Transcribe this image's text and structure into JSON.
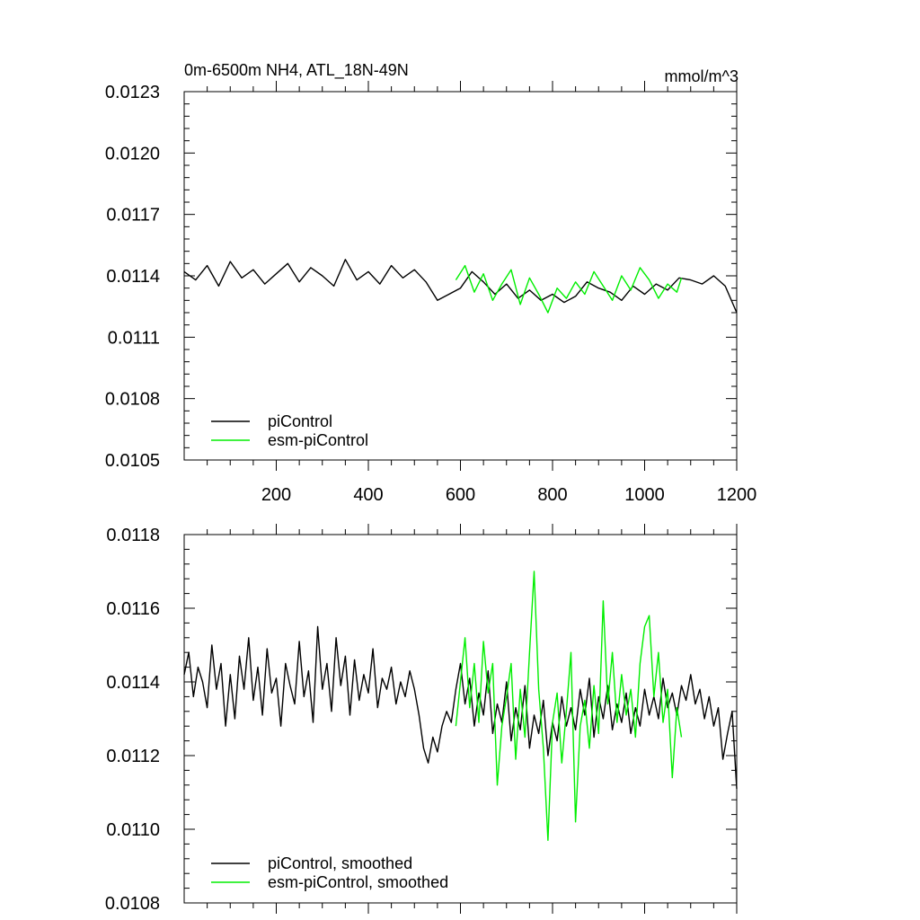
{
  "chart_data": [
    {
      "type": "line",
      "title": "0m-6500m NH4, ATL_18N-49N",
      "units": "mmol/m^3",
      "xlim": [
        0,
        1200
      ],
      "ylim": [
        0.0105,
        0.0123
      ],
      "xticks": [
        200,
        400,
        600,
        800,
        1000,
        1200
      ],
      "xtick_labels": [
        "200",
        "400",
        "600",
        "800",
        "1000",
        "1200"
      ],
      "yticks": [
        0.0105,
        0.0108,
        0.0111,
        0.0114,
        0.0117,
        0.012,
        0.0123
      ],
      "ytick_labels": [
        "0.0105",
        "0.0108",
        "0.0111",
        "0.0114",
        "0.0117",
        "0.0120",
        "0.0123"
      ],
      "legend_position": "lower-left",
      "series": [
        {
          "name": "piControl",
          "color": "#000000",
          "x": [
            0,
            25,
            50,
            75,
            100,
            125,
            150,
            175,
            200,
            225,
            250,
            275,
            300,
            325,
            350,
            375,
            400,
            425,
            450,
            475,
            500,
            525,
            550,
            575,
            600,
            625,
            650,
            675,
            700,
            725,
            750,
            775,
            800,
            825,
            850,
            875,
            900,
            925,
            950,
            975,
            1000,
            1025,
            1050,
            1075,
            1100,
            1125,
            1150,
            1175,
            1200
          ],
          "values": [
            0.01142,
            0.01138,
            0.01145,
            0.01135,
            0.01147,
            0.01139,
            0.01143,
            0.01136,
            0.01141,
            0.01146,
            0.01137,
            0.01144,
            0.0114,
            0.01135,
            0.01148,
            0.01138,
            0.01142,
            0.01136,
            0.01145,
            0.01139,
            0.01143,
            0.01137,
            0.01128,
            0.01131,
            0.01134,
            0.01142,
            0.01137,
            0.01131,
            0.01136,
            0.01129,
            0.01133,
            0.01128,
            0.01131,
            0.01127,
            0.0113,
            0.01137,
            0.01134,
            0.01132,
            0.01128,
            0.01135,
            0.01131,
            0.01136,
            0.01133,
            0.01139,
            0.01138,
            0.01136,
            0.0114,
            0.01135,
            0.01122
          ]
        },
        {
          "name": "esm-piControl",
          "color": "#00ee00",
          "x": [
            590,
            610,
            630,
            650,
            670,
            690,
            710,
            730,
            750,
            770,
            790,
            810,
            830,
            850,
            870,
            890,
            910,
            930,
            950,
            970,
            990,
            1010,
            1030,
            1050,
            1070,
            1080
          ],
          "values": [
            0.01138,
            0.01145,
            0.01132,
            0.01141,
            0.01128,
            0.01136,
            0.01143,
            0.01126,
            0.01139,
            0.01131,
            0.01122,
            0.01134,
            0.01129,
            0.01137,
            0.01131,
            0.01142,
            0.01135,
            0.01128,
            0.0114,
            0.01133,
            0.01144,
            0.01138,
            0.01129,
            0.01136,
            0.01132,
            0.01139
          ]
        }
      ]
    },
    {
      "type": "line",
      "xlim": [
        0,
        1200
      ],
      "ylim": [
        0.0108,
        0.0118
      ],
      "yticks": [
        0.0108,
        0.011,
        0.0112,
        0.0114,
        0.0116,
        0.0118
      ],
      "ytick_labels": [
        "0.0108",
        "0.0110",
        "0.0112",
        "0.0114",
        "0.0116",
        "0.0118"
      ],
      "legend_position": "lower-left",
      "series": [
        {
          "name": "piControl, smoothed",
          "color": "#000000",
          "x": [
            0,
            10,
            20,
            30,
            40,
            50,
            60,
            70,
            80,
            90,
            100,
            110,
            120,
            130,
            140,
            150,
            160,
            170,
            180,
            190,
            200,
            210,
            220,
            230,
            240,
            250,
            260,
            270,
            280,
            290,
            300,
            310,
            320,
            330,
            340,
            350,
            360,
            370,
            380,
            390,
            400,
            410,
            420,
            430,
            440,
            450,
            460,
            470,
            480,
            490,
            500,
            510,
            520,
            530,
            540,
            550,
            560,
            570,
            580,
            590,
            600,
            610,
            620,
            630,
            640,
            650,
            660,
            670,
            680,
            690,
            700,
            710,
            720,
            730,
            740,
            750,
            760,
            770,
            780,
            790,
            800,
            810,
            820,
            830,
            840,
            850,
            860,
            870,
            880,
            890,
            900,
            910,
            920,
            930,
            940,
            950,
            960,
            970,
            980,
            990,
            1000,
            1010,
            1020,
            1030,
            1040,
            1050,
            1060,
            1070,
            1080,
            1090,
            1100,
            1110,
            1120,
            1130,
            1140,
            1150,
            1160,
            1170,
            1180,
            1190,
            1200
          ],
          "values": [
            0.01142,
            0.01148,
            0.01136,
            0.01144,
            0.0114,
            0.01133,
            0.0115,
            0.01138,
            0.01145,
            0.01128,
            0.01142,
            0.0113,
            0.01147,
            0.01138,
            0.01152,
            0.01135,
            0.01144,
            0.01131,
            0.01149,
            0.01137,
            0.01141,
            0.01128,
            0.01145,
            0.01139,
            0.01134,
            0.01151,
            0.01136,
            0.01143,
            0.01129,
            0.01155,
            0.01138,
            0.01145,
            0.01132,
            0.01152,
            0.01139,
            0.01147,
            0.01131,
            0.01146,
            0.01135,
            0.01142,
            0.01137,
            0.01149,
            0.01133,
            0.01141,
            0.01138,
            0.01144,
            0.01134,
            0.0114,
            0.01136,
            0.01143,
            0.01138,
            0.01131,
            0.01122,
            0.01118,
            0.01125,
            0.01121,
            0.01128,
            0.01132,
            0.01129,
            0.01138,
            0.01145,
            0.01134,
            0.01141,
            0.01128,
            0.01137,
            0.01131,
            0.01143,
            0.01126,
            0.01134,
            0.01129,
            0.0114,
            0.01124,
            0.01133,
            0.01127,
            0.01139,
            0.01122,
            0.01131,
            0.01126,
            0.01135,
            0.0112,
            0.01129,
            0.01124,
            0.01136,
            0.01128,
            0.01133,
            0.01127,
            0.01138,
            0.01131,
            0.01141,
            0.01125,
            0.01136,
            0.0113,
            0.01139,
            0.01127,
            0.01134,
            0.01129,
            0.01137,
            0.01126,
            0.01133,
            0.01128,
            0.01138,
            0.01131,
            0.01136,
            0.0113,
            0.01141,
            0.01133,
            0.01137,
            0.01131,
            0.01139,
            0.01135,
            0.01142,
            0.01134,
            0.01138,
            0.0113,
            0.01136,
            0.01128,
            0.01133,
            0.01119,
            0.01126,
            0.01132,
            0.01111
          ]
        },
        {
          "name": "esm-piControl, smoothed",
          "color": "#00ee00",
          "x": [
            590,
            600,
            610,
            620,
            630,
            640,
            650,
            660,
            670,
            680,
            690,
            700,
            710,
            720,
            730,
            740,
            750,
            760,
            770,
            780,
            790,
            800,
            810,
            820,
            830,
            840,
            850,
            860,
            870,
            880,
            890,
            900,
            910,
            920,
            930,
            940,
            950,
            960,
            970,
            980,
            990,
            1000,
            1010,
            1020,
            1030,
            1040,
            1050,
            1060,
            1070,
            1080
          ],
          "values": [
            0.01128,
            0.0114,
            0.01152,
            0.01133,
            0.01145,
            0.01129,
            0.01151,
            0.01137,
            0.01145,
            0.01112,
            0.01128,
            0.01136,
            0.01145,
            0.01119,
            0.01138,
            0.01125,
            0.01148,
            0.0117,
            0.01138,
            0.01122,
            0.01097,
            0.01129,
            0.01137,
            0.01118,
            0.01132,
            0.01148,
            0.01102,
            0.01128,
            0.01135,
            0.01122,
            0.01139,
            0.01126,
            0.01162,
            0.01134,
            0.01148,
            0.01129,
            0.01142,
            0.01131,
            0.01138,
            0.01125,
            0.01145,
            0.01155,
            0.01158,
            0.01136,
            0.01148,
            0.01129,
            0.01138,
            0.01114,
            0.01133,
            0.01125
          ]
        }
      ]
    }
  ]
}
